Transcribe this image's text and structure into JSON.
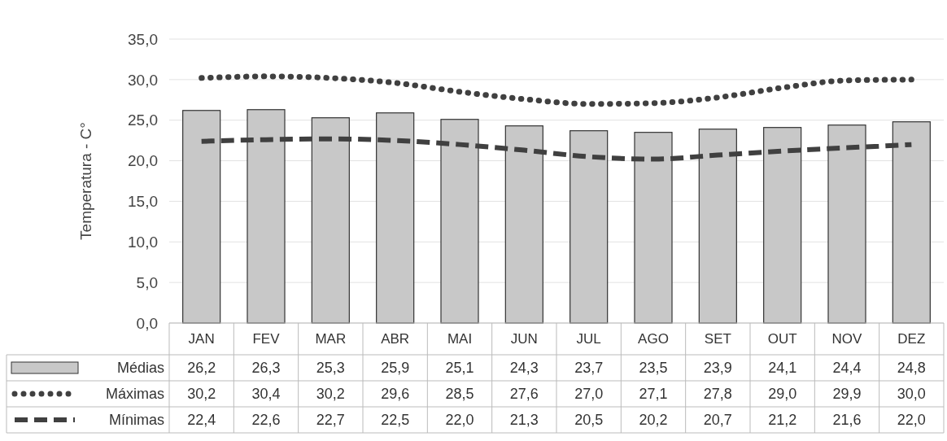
{
  "chart_data": {
    "type": "bar",
    "ylabel": "Temperatura - C°",
    "categories": [
      "JAN",
      "FEV",
      "MAR",
      "ABR",
      "MAI",
      "JUN",
      "JUL",
      "AGO",
      "SET",
      "OUT",
      "NOV",
      "DEZ"
    ],
    "series": [
      {
        "name": "Médias",
        "color": "#c8c8c8",
        "values": [
          26.2,
          26.3,
          25.3,
          25.9,
          25.1,
          24.3,
          23.7,
          23.5,
          23.9,
          24.1,
          24.4,
          24.8
        ],
        "value_labels": [
          "26,2",
          "26,3",
          "25,3",
          "25,9",
          "25,1",
          "24,3",
          "23,7",
          "23,5",
          "23,9",
          "24,1",
          "24,4",
          "24,8"
        ]
      },
      {
        "name": "Máximas",
        "type": "line",
        "line_style": "dotted",
        "color": "#404040",
        "values": [
          30.2,
          30.4,
          30.2,
          29.6,
          28.5,
          27.6,
          27.0,
          27.1,
          27.8,
          29.0,
          29.9,
          30.0
        ],
        "value_labels": [
          "30,2",
          "30,4",
          "30,2",
          "29,6",
          "28,5",
          "27,6",
          "27,0",
          "27,1",
          "27,8",
          "29,0",
          "29,9",
          "30,0"
        ]
      },
      {
        "name": "Mínimas",
        "type": "line",
        "line_style": "dashed",
        "color": "#404040",
        "values": [
          22.4,
          22.6,
          22.7,
          22.5,
          22.0,
          21.3,
          20.5,
          20.2,
          20.7,
          21.2,
          21.6,
          22.0
        ],
        "value_labels": [
          "22,4",
          "22,6",
          "22,7",
          "22,5",
          "22,0",
          "21,3",
          "20,5",
          "20,2",
          "20,7",
          "21,2",
          "21,6",
          "22,0"
        ]
      }
    ],
    "ylim": [
      0,
      35
    ],
    "yticks": [
      {
        "value": 0,
        "label": "0,0"
      },
      {
        "value": 5,
        "label": "5,0"
      },
      {
        "value": 10,
        "label": "10,0"
      },
      {
        "value": 15,
        "label": "15,0"
      },
      {
        "value": 20,
        "label": "20,0"
      },
      {
        "value": 25,
        "label": "25,0"
      },
      {
        "value": 30,
        "label": "30,0"
      },
      {
        "value": 35,
        "label": "35,0"
      }
    ],
    "grid": "y",
    "legend": "bottom",
    "marker": "none"
  }
}
